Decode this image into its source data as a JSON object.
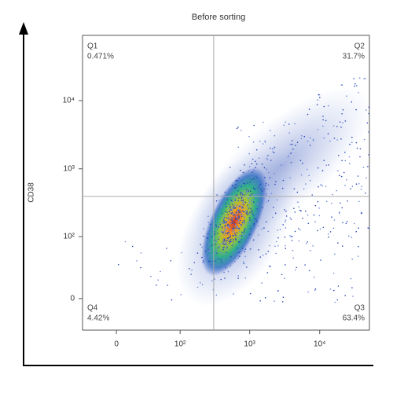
{
  "chart_data": {
    "type": "quadrant-density",
    "title": "Before sorting",
    "y_label": "CD38",
    "xscale": "biexponential",
    "yscale": "biexponential",
    "xlim": [
      -34,
      51300
    ],
    "ylim": [
      -32,
      90700
    ],
    "xticks": [
      0,
      {
        "value": 100,
        "label": "10²"
      },
      {
        "value": 1000,
        "label": "10³"
      },
      {
        "value": 10000,
        "label": "10⁴"
      }
    ],
    "yticks": [
      0,
      {
        "value": 100,
        "label": "10²"
      },
      {
        "value": 1000,
        "label": "10³"
      },
      {
        "value": 10000,
        "label": "10⁴"
      }
    ],
    "gate": {
      "x": 306,
      "y": 394
    },
    "quadrants": [
      {
        "name": "Q1",
        "percent": "0.471%",
        "corner": "top-left"
      },
      {
        "name": "Q2",
        "percent": "31.7%",
        "corner": "top-right"
      },
      {
        "name": "Q3",
        "percent": "63.4%",
        "corner": "bottom-right"
      },
      {
        "name": "Q4",
        "percent": "4.42%",
        "corner": "bottom-left"
      }
    ]
  }
}
